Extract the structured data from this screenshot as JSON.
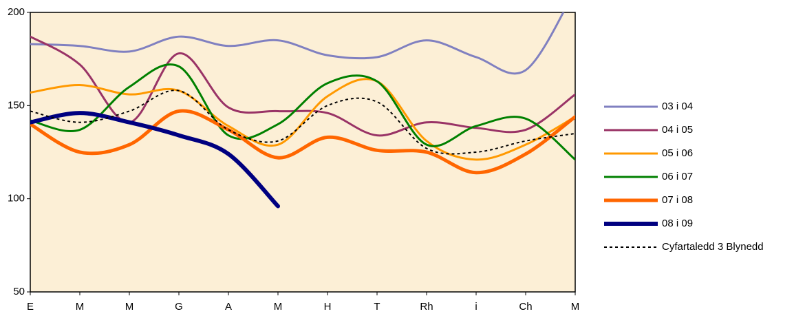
{
  "chart_data": {
    "type": "line",
    "categories": [
      "E",
      "M",
      "M",
      "G",
      "A",
      "M",
      "H",
      "T",
      "Rh",
      "i",
      "Ch",
      "M"
    ],
    "ylim": [
      50,
      200
    ],
    "yticks": [
      50,
      100,
      150,
      200
    ],
    "grid": false,
    "legend": "right",
    "series": [
      {
        "name": "03 i 04",
        "color": "#8080c0",
        "line_width": 3,
        "values": [
          183,
          182,
          179,
          187,
          182,
          185,
          177,
          176,
          185,
          176,
          169,
          212
        ]
      },
      {
        "name": "04 i 05",
        "color": "#993366",
        "line_width": 3,
        "values": [
          187,
          172,
          141,
          178,
          149,
          147,
          146,
          134,
          141,
          138,
          137,
          156
        ]
      },
      {
        "name": "05 i 06",
        "color": "#ff9900",
        "line_width": 3,
        "values": [
          157,
          161,
          156,
          158,
          139,
          129,
          155,
          163,
          131,
          121,
          129,
          144
        ]
      },
      {
        "name": "06 i 07",
        "color": "#008000",
        "line_width": 3,
        "values": [
          142,
          137,
          160,
          171,
          134,
          140,
          162,
          163,
          129,
          139,
          143,
          121
        ]
      },
      {
        "name": "07 i 08",
        "color": "#ff6600",
        "line_width": 5,
        "values": [
          140,
          125,
          129,
          147,
          137,
          122,
          133,
          126,
          125,
          114,
          124,
          144
        ]
      },
      {
        "name": "08 i 09",
        "color": "#000080",
        "line_width": 6,
        "values": [
          141,
          146,
          141,
          134,
          124,
          96,
          null,
          null,
          null,
          null,
          null,
          null
        ]
      },
      {
        "name": "Cyfartaledd 3 Blynedd",
        "color": "#000000",
        "line_width": 2,
        "dashed": true,
        "values": [
          147,
          141,
          147,
          158,
          137,
          131,
          150,
          152,
          127,
          125,
          131,
          135
        ]
      }
    ]
  }
}
